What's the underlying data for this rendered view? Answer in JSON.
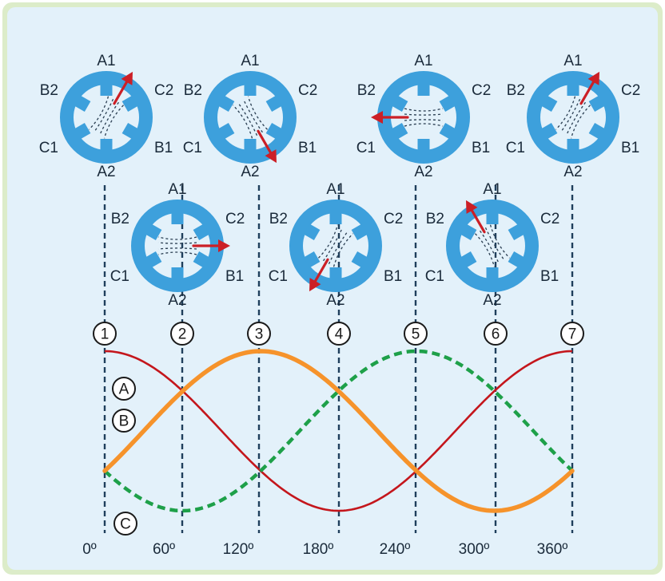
{
  "diagram": {
    "colors": {
      "frame": "#dcecc9",
      "panel": "#e3f1fa",
      "motor": "#3da0dc",
      "arrow": "#cc1f26",
      "dash": "#1f3f5c",
      "curve_a": "#c4161c",
      "curve_b": "#f6932b",
      "curve_c": "#1ea049"
    },
    "motors": [
      {
        "step": "1",
        "pole_labels": {
          "top": "A1",
          "bottom": "A2",
          "upper_left": "B2",
          "upper_right": "C2",
          "lower_left": "C1",
          "lower_right": "B1"
        },
        "rotor_field_angle_deg": 60
      },
      {
        "step": "2",
        "pole_labels": {
          "top": "A1",
          "bottom": "A2",
          "upper_left": "B2",
          "upper_right": "C2",
          "lower_left": "C1",
          "lower_right": "B1"
        },
        "rotor_field_angle_deg": 0
      },
      {
        "step": "3",
        "pole_labels": {
          "top": "A1",
          "bottom": "A2",
          "upper_left": "B2",
          "upper_right": "C2",
          "lower_left": "C1",
          "lower_right": "B1"
        },
        "rotor_field_angle_deg": -60
      },
      {
        "step": "4",
        "pole_labels": {
          "top": "A1",
          "bottom": "A2",
          "upper_left": "B2",
          "upper_right": "C2",
          "lower_left": "C1",
          "lower_right": "B1"
        },
        "rotor_field_angle_deg": -120
      },
      {
        "step": "5",
        "pole_labels": {
          "top": "A1",
          "bottom": "A2",
          "upper_left": "B2",
          "upper_right": "C2",
          "lower_left": "C1",
          "lower_right": "B1"
        },
        "rotor_field_angle_deg": 180
      },
      {
        "step": "6",
        "pole_labels": {
          "top": "A1",
          "bottom": "A2",
          "upper_left": "B2",
          "upper_right": "C2",
          "lower_left": "C1",
          "lower_right": "B1"
        },
        "rotor_field_angle_deg": 120
      },
      {
        "step": "7",
        "pole_labels": {
          "top": "A1",
          "bottom": "A2",
          "upper_left": "B2",
          "upper_right": "C2",
          "lower_left": "C1",
          "lower_right": "B1"
        },
        "rotor_field_angle_deg": 60
      }
    ],
    "step_markers": [
      "1",
      "2",
      "3",
      "4",
      "5",
      "6",
      "7"
    ],
    "phase_labels": [
      "A",
      "B",
      "C"
    ],
    "angle_labels": [
      "0º",
      "60º",
      "120º",
      "180º",
      "240º",
      "300º",
      "360º"
    ]
  }
}
